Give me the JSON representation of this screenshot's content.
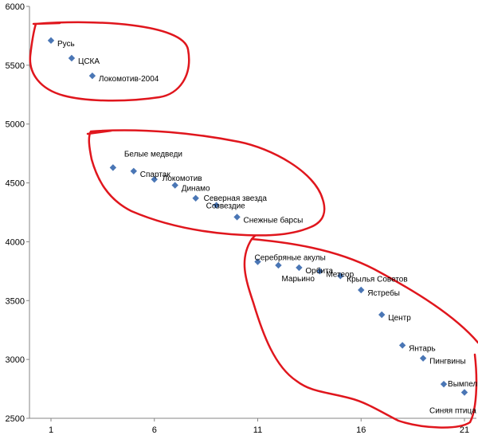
{
  "chart_data": {
    "type": "scatter",
    "title": "",
    "xlabel": "",
    "ylabel": "",
    "xlim": [
      0,
      21
    ],
    "ylim": [
      2500,
      6000
    ],
    "x_ticks": [
      "1",
      "6",
      "11",
      "16",
      "21"
    ],
    "y_ticks": [
      "2500",
      "3000",
      "3500",
      "4000",
      "4500",
      "5000",
      "5500",
      "6000"
    ],
    "grid": false,
    "legend": "none",
    "marker_color": "#4a76b5",
    "annotation_color": "#e0161d",
    "points": [
      {
        "x": 1,
        "y": 5710,
        "label": "Русь"
      },
      {
        "x": 2,
        "y": 5560,
        "label": "ЦСКА"
      },
      {
        "x": 3,
        "y": 5410,
        "label": "Локомотив-2004"
      },
      {
        "x": 4,
        "y": 4630,
        "label": "Белые медведи"
      },
      {
        "x": 5,
        "y": 4600,
        "label": "Спартак"
      },
      {
        "x": 6,
        "y": 4530,
        "label": "Локомотив"
      },
      {
        "x": 7,
        "y": 4480,
        "label": "Динамо"
      },
      {
        "x": 8,
        "y": 4370,
        "label": "Северная звезда"
      },
      {
        "x": 9,
        "y": 4310,
        "label": "Созвездие"
      },
      {
        "x": 10,
        "y": 4210,
        "label": "Снежные барсы"
      },
      {
        "x": 11,
        "y": 3830,
        "label": "Серебряные акулы"
      },
      {
        "x": 12,
        "y": 3800,
        "label": "Марьино"
      },
      {
        "x": 13,
        "y": 3780,
        "label": "Орбита"
      },
      {
        "x": 14,
        "y": 3750,
        "label": "Метеор"
      },
      {
        "x": 15,
        "y": 3710,
        "label": "Крылья Советов"
      },
      {
        "x": 16,
        "y": 3590,
        "label": "Ястребы"
      },
      {
        "x": 17,
        "y": 3380,
        "label": "Центр"
      },
      {
        "x": 18,
        "y": 3120,
        "label": "Янтарь"
      },
      {
        "x": 19,
        "y": 3010,
        "label": "Пингвины"
      },
      {
        "x": 20,
        "y": 2790,
        "label": "Вымпел"
      },
      {
        "x": 21,
        "y": 2720,
        "label": "Синяя птица"
      }
    ]
  }
}
